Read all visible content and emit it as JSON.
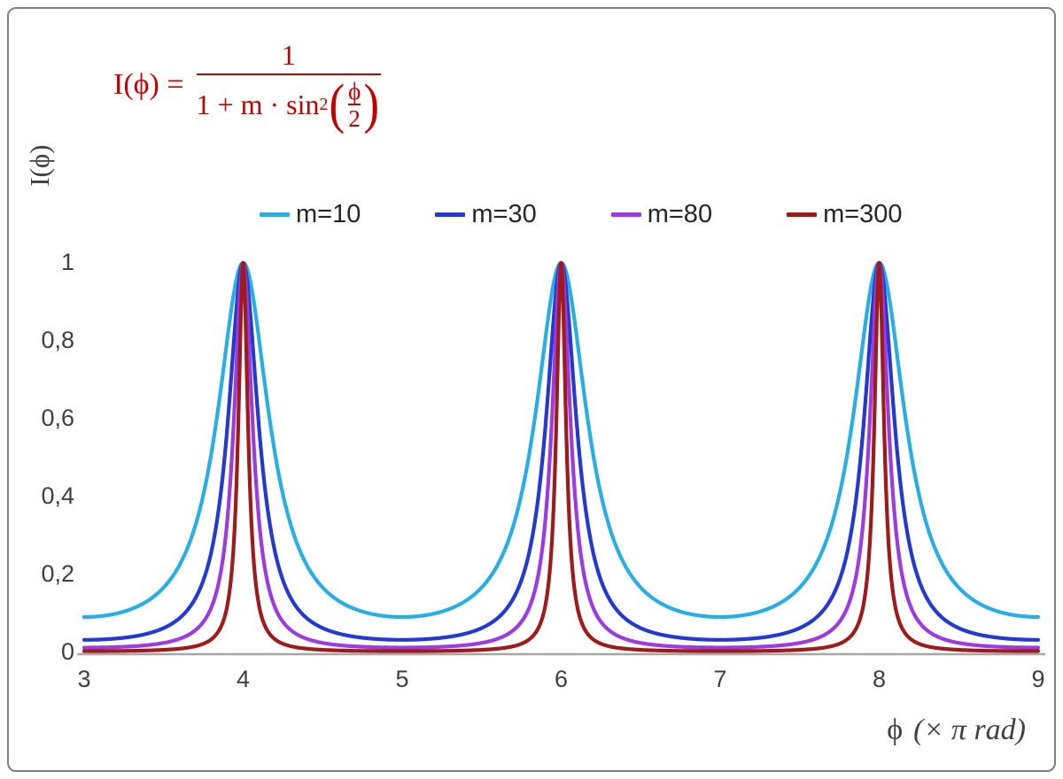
{
  "chart_data": {
    "type": "line",
    "title": "",
    "formula_text": "I(ϕ) = 1 / (1 + m·sin²(ϕ/2))",
    "formula": {
      "lhs": "I(ϕ) =",
      "numerator": "1",
      "denominator_prefix": "1 + m · sin",
      "denominator_sup": "2",
      "inner_numerator": "ϕ",
      "inner_denominator": "2",
      "open_paren": "(",
      "close_paren": ")",
      "color": "#C00000"
    },
    "ylabel": "I(ϕ)",
    "xlabel": {
      "symbol": "ϕ",
      "unit": "(× π rad)"
    },
    "x_unit": "π rad",
    "xlim": [
      3,
      9
    ],
    "ylim": [
      0,
      1
    ],
    "grid": false,
    "legend_position": "top-center",
    "axis_color": "#A6A6A6",
    "x_ticks": [
      "3",
      "4",
      "5",
      "6",
      "7",
      "8",
      "9"
    ],
    "y_ticks": [
      {
        "value": 0,
        "label": "0"
      },
      {
        "value": 0.2,
        "label": "0,2"
      },
      {
        "value": 0.4,
        "label": "0,4"
      },
      {
        "value": 0.6,
        "label": "0,6"
      },
      {
        "value": 0.8,
        "label": "0,8"
      },
      {
        "value": 1,
        "label": "1"
      }
    ],
    "peaks_at_x": [
      4,
      6,
      8
    ],
    "peak_value": 1,
    "function": "I(x) = 1 / (1 + m * sin^2(pi*x/2)), x in units of pi rad",
    "series": [
      {
        "name": "m=10",
        "m": 10,
        "color": "#29AEE4"
      },
      {
        "name": "m=30",
        "m": 30,
        "color": "#2438D2"
      },
      {
        "name": "m=80",
        "m": 80,
        "color": "#9C3BE0"
      },
      {
        "name": "m=300",
        "m": 300,
        "color": "#9E1B1B"
      }
    ]
  }
}
